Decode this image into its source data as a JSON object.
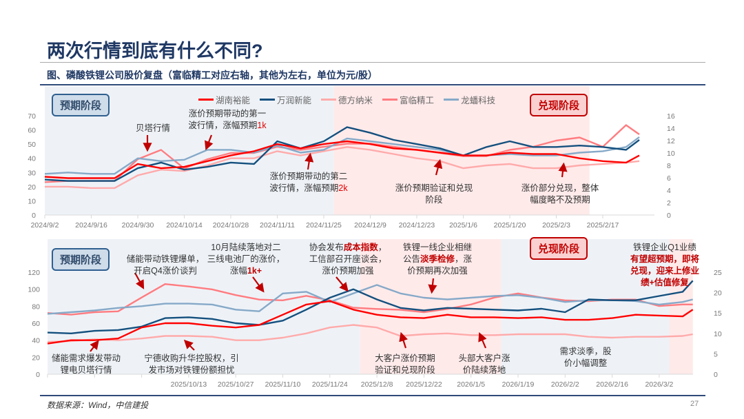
{
  "title": "两次行情到底有什么不同?",
  "subtitle": "图、磷酸铁锂公司股价复盘（富临精工对应右轴，其他为左右，单位为元/股）",
  "source": "数据来源：Wind，中信建投",
  "page_number": "27",
  "colors": {
    "湖南裕能": "#ff0000",
    "万润新能": "#14507e",
    "德方纳米": "#ffaaaa",
    "富临精工": "#ff7c80",
    "龙蟠科技": "#86a9c8",
    "arrow": "#c00000",
    "expect_bg": "#eef2f7",
    "realize_bg": "#ffeaea"
  },
  "legend": [
    "湖南裕能",
    "万润新能",
    "德方纳米",
    "富临精工",
    "龙蟠科技"
  ],
  "badges": {
    "expect": "预期阶段",
    "realize": "兑现阶段"
  },
  "chart_data": [
    {
      "type": "line",
      "xlabels": [
        "2024/9/2",
        "2024/9/16",
        "2024/9/30",
        "2024/10/14",
        "2024/10/28",
        "2024/11/11",
        "2024/11/25",
        "2024/12/9",
        "2024/12/23",
        "2025/1/6",
        "2025/1/20",
        "2025/2/3",
        "2025/2/17"
      ],
      "yticks_left": [
        "0",
        "10",
        "20",
        "30",
        "40",
        "50",
        "60",
        "70"
      ],
      "yticks_right": [
        "0",
        "2",
        "4",
        "6",
        "8",
        "10",
        "12",
        "14",
        "16"
      ],
      "ylim_left": [
        0,
        70
      ],
      "ylim_right": [
        0,
        16
      ],
      "phases": [
        {
          "name": "预期阶段",
          "from": "2024/9/2",
          "to": "2024/11/28"
        },
        {
          "name": "兑现阶段",
          "from": "2024/11/28",
          "to": "2025/2/13"
        }
      ],
      "x": [
        "2024/9/2",
        "2024/9/9",
        "2024/9/16",
        "2024/9/23",
        "2024/9/30",
        "2024/10/7",
        "2024/10/14",
        "2024/10/21",
        "2024/10/28",
        "2024/11/4",
        "2024/11/11",
        "2024/11/18",
        "2024/11/25",
        "2024/12/2",
        "2024/12/9",
        "2024/12/16",
        "2024/12/23",
        "2024/12/30",
        "2025/1/6",
        "2025/1/13",
        "2025/1/20",
        "2025/1/27",
        "2025/2/3",
        "2025/2/10",
        "2025/2/17",
        "2025/2/24",
        "2025/2/28"
      ],
      "series": [
        {
          "name": "湖南裕能",
          "axis": "left",
          "values": [
            27,
            26,
            26,
            26,
            36,
            33,
            34,
            38,
            42,
            45,
            50,
            47,
            50,
            52,
            50,
            47,
            46,
            44,
            42,
            42,
            44,
            43,
            43,
            40,
            38,
            37,
            42
          ]
        },
        {
          "name": "万润新能",
          "axis": "left",
          "values": [
            25,
            24,
            24,
            24,
            33,
            37,
            32,
            34,
            37,
            36,
            52,
            47,
            52,
            62,
            58,
            53,
            50,
            47,
            42,
            48,
            52,
            48,
            48,
            49,
            48,
            46,
            53
          ]
        },
        {
          "name": "德方纳米",
          "axis": "left",
          "values": [
            20,
            20,
            19,
            19,
            28,
            32,
            31,
            35,
            40,
            40,
            45,
            42,
            45,
            48,
            46,
            43,
            40,
            38,
            33,
            35,
            36,
            33,
            33,
            35,
            36,
            37,
            38
          ]
        },
        {
          "name": "富临精工",
          "axis": "right",
          "values": [
            5.3,
            5.5,
            5.5,
            5.5,
            9,
            10.5,
            7.5,
            9,
            10,
            10,
            11,
            10.5,
            11,
            11.5,
            11.5,
            11,
            10.5,
            10,
            9.5,
            9.5,
            10.5,
            11,
            12,
            12.5,
            11,
            14.5,
            13
          ]
        },
        {
          "name": "龙蟠科技",
          "axis": "left",
          "values": [
            29,
            30,
            29,
            29,
            40,
            38,
            39,
            46,
            46,
            44,
            49,
            44,
            46,
            54,
            52,
            50,
            48,
            46,
            42,
            42,
            43,
            42,
            42,
            44,
            45,
            48,
            55
          ]
        }
      ],
      "annotations": [
        {
          "parts": [
            {
              "t": "贝塔行情"
            }
          ]
        },
        {
          "parts": [
            {
              "t": "涨价预期带动的第一\n波行情，涨幅预期"
            },
            {
              "t": "1k",
              "hl": true
            }
          ]
        },
        {
          "parts": [
            {
              "t": "涨价预期带动的第二\n波行情，涨幅预期"
            },
            {
              "t": "2k",
              "hl": true
            }
          ]
        },
        {
          "parts": [
            {
              "t": "涨价预期验证和兑现\n阶段"
            }
          ]
        },
        {
          "parts": [
            {
              "t": "涨价部分兑现，整体\n幅度略不及预期"
            }
          ]
        }
      ]
    },
    {
      "type": "line",
      "xlabels": [
        "",
        "",
        "",
        "2025/10/13",
        "2025/10/27",
        "2025/11/10",
        "2025/11/24",
        "2025/12/8",
        "2025/12/22",
        "2026/1/5",
        "2026/1/19",
        "2026/2/2",
        "2026/2/16",
        "2026/3/2"
      ],
      "yticks_left": [
        "0",
        "20",
        "40",
        "60",
        "80",
        "100",
        "120"
      ],
      "yticks_right": [
        "0",
        "5",
        "10",
        "15",
        "20",
        "25"
      ],
      "ylim_left": [
        0,
        120
      ],
      "ylim_right": [
        0,
        25
      ],
      "phases": [
        {
          "name": "预期阶段",
          "from": "2025/9/1",
          "to": "2025/12/3"
        },
        {
          "name": "兑现阶段",
          "from": "2025/12/3",
          "to": "2026/1/14"
        },
        {
          "name": "预期阶段",
          "from": "2026/1/14",
          "to": "2026/3/5"
        },
        {
          "name": "兑现阶段",
          "from": "2026/3/5",
          "to": "2026/3/12"
        }
      ],
      "x": [
        "2025/9/1",
        "2025/9/8",
        "2025/9/15",
        "2025/9/22",
        "2025/9/29",
        "2025/10/6",
        "2025/10/13",
        "2025/10/20",
        "2025/10/27",
        "2025/11/3",
        "2025/11/10",
        "2025/11/17",
        "2025/11/24",
        "2025/12/1",
        "2025/12/8",
        "2025/12/15",
        "2025/12/22",
        "2025/12/29",
        "2026/1/5",
        "2026/1/12",
        "2026/1/19",
        "2026/1/26",
        "2026/2/2",
        "2026/2/9",
        "2026/2/16",
        "2026/2/23",
        "2026/3/2",
        "2026/3/9",
        "2026/3/12"
      ],
      "series": [
        {
          "name": "湖南裕能",
          "axis": "left",
          "values": [
            36,
            40,
            40,
            42,
            55,
            60,
            60,
            57,
            55,
            58,
            70,
            82,
            86,
            76,
            70,
            67,
            66,
            70,
            67,
            67,
            66,
            67,
            64,
            64,
            66,
            70,
            69,
            68,
            76
          ]
        },
        {
          "name": "万润新能",
          "axis": "left",
          "values": [
            49,
            48,
            51,
            52,
            56,
            66,
            67,
            65,
            60,
            58,
            63,
            76,
            90,
            100,
            88,
            78,
            75,
            78,
            77,
            76,
            75,
            77,
            73,
            88,
            87,
            87,
            92,
            97,
            110
          ]
        },
        {
          "name": "德方纳米",
          "axis": "left",
          "values": [
            38,
            39,
            41,
            40,
            42,
            45,
            45,
            44,
            40,
            40,
            43,
            48,
            55,
            58,
            55,
            45,
            47,
            48,
            46,
            46,
            47,
            47,
            47,
            44,
            43,
            44,
            44,
            45,
            47
          ]
        },
        {
          "name": "富临精工",
          "axis": "right",
          "values": [
            15.0,
            14.6,
            15.2,
            15.4,
            18.8,
            22.1,
            21.5,
            20.8,
            19.4,
            18.3,
            18.1,
            19.2,
            18.1,
            16.3,
            16.0,
            15.8,
            15.2,
            16.0,
            17.1,
            18.8,
            19.8,
            18.8,
            18.1,
            17.9,
            18.3,
            18.3,
            16.7,
            17.1,
            17.1
          ]
        },
        {
          "name": "龙蟠科技",
          "axis": "left",
          "values": [
            71,
            73,
            75,
            78,
            80,
            83,
            83,
            82,
            76,
            74,
            95,
            97,
            85,
            95,
            105,
            95,
            90,
            88,
            90,
            92,
            93,
            90,
            85,
            87,
            87,
            86,
            82,
            85,
            88
          ]
        }
      ],
      "annotations": [
        {
          "parts": [
            {
              "t": "储能带动铁锂爆单，\n开启Q4涨价谈判"
            }
          ]
        },
        {
          "parts": [
            {
              "t": "10月陆续落地对二\n三线电池厂的涨价，\n涨幅"
            },
            {
              "t": "1k+",
              "hb": true
            }
          ]
        },
        {
          "parts": [
            {
              "t": "协会发布"
            },
            {
              "t": "成本指数",
              "hb": true
            },
            {
              "t": "，\n工信部召开座谈会，\n涨价预期加强"
            }
          ]
        },
        {
          "parts": [
            {
              "t": "铁锂一线企业相继\n公告"
            },
            {
              "t": "淡季检修",
              "hb": true
            },
            {
              "t": "，涨\n价预期再次加强"
            }
          ]
        },
        {
          "parts": [
            {
              "t": "铁锂企业Q1业绩\n"
            },
            {
              "t": "有望超预期，即将\n兑现，迎来上修业\n绩+估值修复",
              "hb": true
            }
          ]
        },
        {
          "parts": [
            {
              "t": "储能需求爆发带动\n锂电贝塔行情"
            }
          ]
        },
        {
          "parts": [
            {
              "t": "宁德收购升华控股权，引\n发市场对铁锂份额担忧"
            }
          ]
        },
        {
          "parts": [
            {
              "t": "大客户涨价预期\n验证和兑现阶段"
            }
          ]
        },
        {
          "parts": [
            {
              "t": "头部大客户涨\n价陆续落地"
            }
          ]
        },
        {
          "parts": [
            {
              "t": "需求淡季，股\n价小幅调整"
            }
          ]
        }
      ]
    }
  ]
}
